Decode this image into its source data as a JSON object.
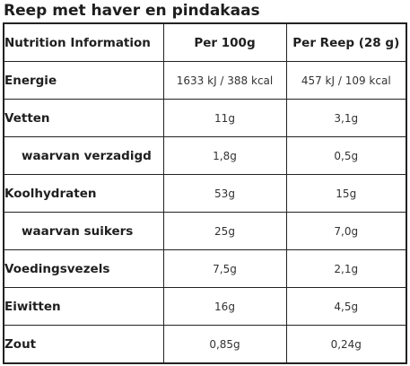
{
  "title": "Reep met haver en pindakaas",
  "table": {
    "headers": [
      "Nutrition Information",
      "Per 100g",
      "Per Reep (28 g)"
    ],
    "rows": [
      {
        "label": "Energie",
        "sub": false,
        "per100": "1633 kJ / 388 kcal",
        "per_portion": "457 kJ / 109 kcal"
      },
      {
        "label": "Vetten",
        "sub": false,
        "per100": "11g",
        "per_portion": "3,1g"
      },
      {
        "label": "waarvan verzadigd",
        "sub": true,
        "per100": "1,8g",
        "per_portion": "0,5g"
      },
      {
        "label": "Koolhydraten",
        "sub": false,
        "per100": "53g",
        "per_portion": "15g"
      },
      {
        "label": "waarvan suikers",
        "sub": true,
        "per100": "25g",
        "per_portion": "7,0g"
      },
      {
        "label": "Voedingsvezels",
        "sub": false,
        "per100": "7,5g",
        "per_portion": "2,1g"
      },
      {
        "label": "Eiwitten",
        "sub": false,
        "per100": "16g",
        "per_portion": "4,5g"
      },
      {
        "label": "Zout",
        "sub": false,
        "per100": "0,85g",
        "per_portion": "0,24g"
      }
    ]
  }
}
